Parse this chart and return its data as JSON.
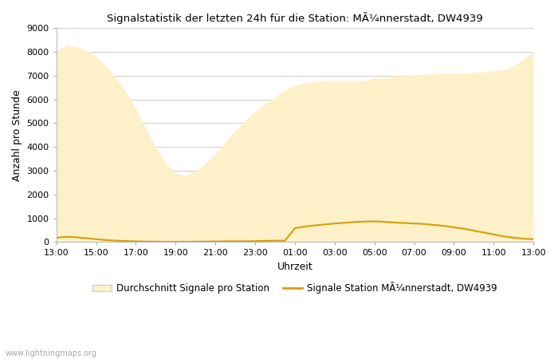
{
  "title": "Signalstatistik der letzten 24h für die Station: MÃ¼nnerstadt, DW4939",
  "xlabel": "Uhrzeit",
  "ylabel": "Anzahl pro Stunde",
  "xlim": [
    0,
    24
  ],
  "ylim": [
    0,
    9000
  ],
  "yticks": [
    0,
    1000,
    2000,
    3000,
    4000,
    5000,
    6000,
    7000,
    8000,
    9000
  ],
  "xtick_labels": [
    "13:00",
    "15:00",
    "17:00",
    "19:00",
    "21:00",
    "23:00",
    "01:00",
    "03:00",
    "05:00",
    "07:00",
    "09:00",
    "11:00",
    "13:00"
  ],
  "fill_color": "#fef0c8",
  "line_color": "#d4a000",
  "bg_color": "#ffffff",
  "grid_color": "#cccccc",
  "watermark": "www.lightningmaps.org",
  "legend_fill_label": "Durchschnitt Signale pro Station",
  "legend_line_label": "Signale Station MÃ¼nnerstadt, DW4939",
  "avg_x": [
    0,
    0.5,
    1,
    1.5,
    2,
    2.5,
    3,
    3.5,
    4,
    4.5,
    5,
    5.5,
    6,
    6.5,
    7,
    7.5,
    8,
    8.5,
    9,
    9.5,
    10,
    10.5,
    11,
    11.5,
    12,
    12.5,
    13,
    13.5,
    14,
    14.5,
    15,
    15.5,
    16,
    16.5,
    17,
    17.5,
    18,
    18.5,
    19,
    19.5,
    20,
    20.5,
    21,
    21.5,
    22,
    22.5,
    23,
    23.5,
    24
  ],
  "avg_y": [
    8000,
    8300,
    8200,
    8100,
    7800,
    7400,
    6900,
    6300,
    5600,
    4800,
    4000,
    3300,
    2900,
    2800,
    3000,
    3300,
    3700,
    4200,
    4700,
    5100,
    5500,
    5800,
    6100,
    6400,
    6600,
    6700,
    6750,
    6800,
    6800,
    6800,
    6800,
    6800,
    6900,
    6900,
    7000,
    7000,
    7050,
    7050,
    7100,
    7100,
    7100,
    7100,
    7150,
    7150,
    7200,
    7250,
    7400,
    7700,
    8000
  ],
  "station_x": [
    0,
    0.5,
    1,
    1.5,
    2,
    2.5,
    3,
    3.5,
    4,
    4.5,
    5,
    5.5,
    6,
    6.5,
    7,
    7.5,
    8,
    8.5,
    9,
    9.5,
    10,
    10.5,
    11,
    11.5,
    12,
    12.5,
    13,
    13.5,
    14,
    14.5,
    15,
    15.5,
    16,
    16.5,
    17,
    17.5,
    18,
    18.5,
    19,
    19.5,
    20,
    20.5,
    21,
    21.5,
    22,
    22.5,
    23,
    23.5,
    24
  ],
  "station_y": [
    180,
    220,
    200,
    160,
    120,
    80,
    60,
    40,
    30,
    20,
    15,
    10,
    10,
    10,
    15,
    20,
    25,
    30,
    35,
    30,
    40,
    50,
    55,
    60,
    580,
    650,
    700,
    740,
    780,
    810,
    840,
    860,
    870,
    850,
    820,
    800,
    780,
    760,
    720,
    680,
    620,
    560,
    480,
    400,
    320,
    240,
    180,
    140,
    120
  ]
}
